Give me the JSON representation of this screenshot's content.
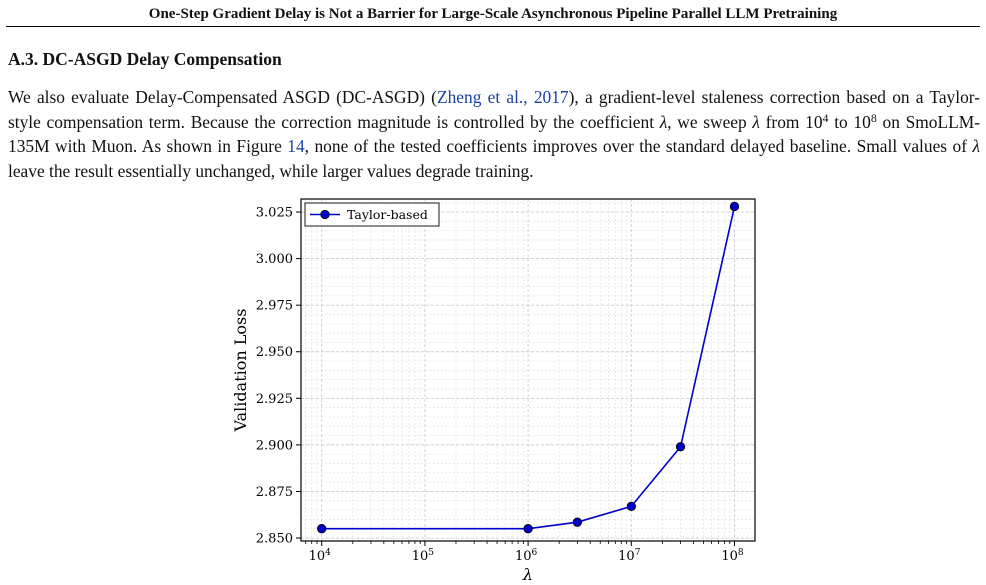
{
  "header": {
    "running_title": "One-Step Gradient Delay is Not a Barrier for Large-Scale Asynchronous Pipeline Parallel LLM Pretraining"
  },
  "section": {
    "title": "A.3. DC-ASGD Delay Compensation",
    "p_1": "We also evaluate Delay-Compensated ASGD (DC-ASGD) (",
    "citation": "Zheng et al., 2017",
    "p_2": "), a gradient-level staleness correction based on a Taylor-style compensation term. Because the correction magnitude is controlled by the coefficient ",
    "lambda_symbol": "λ",
    "p_3": ", we sweep ",
    "p_4": " from 10",
    "exp_from": "4",
    "p_5": " to 10",
    "exp_to": "8",
    "p_6": " on SmoLLM-135M with Muon. As shown in Figure ",
    "figure_ref": "14",
    "p_7": ", none of the tested coefficients improves over the standard delayed baseline. Small values of ",
    "p_8": " leave the result essentially unchanged, while larger values degrade training."
  },
  "chart_data": {
    "type": "line",
    "xlabel": "λ",
    "ylabel": "Validation Loss",
    "xscale": "log",
    "xlim": [
      6300,
      158000000
    ],
    "ylim": [
      2.8484,
      3.032
    ],
    "x_ticks": [
      10000,
      100000,
      1000000,
      10000000,
      100000000
    ],
    "x_tick_base": "10",
    "x_tick_exponents": [
      "4",
      "5",
      "6",
      "7",
      "8"
    ],
    "y_ticks": [
      2.85,
      2.875,
      2.9,
      2.925,
      2.95,
      2.975,
      3.0,
      3.025
    ],
    "y_tick_labels": [
      "2.850",
      "2.875",
      "2.900",
      "2.925",
      "2.950",
      "2.975",
      "3.000",
      "3.025"
    ],
    "grid": true,
    "legend_position": "top-left",
    "series": [
      {
        "name": "Taylor-based",
        "color": "#0000cc",
        "marker_color": "#0000cc",
        "x": [
          10000,
          1000000,
          3000000,
          10000000,
          30000000,
          100000000
        ],
        "y": [
          2.855,
          2.855,
          2.8585,
          2.867,
          2.899,
          3.028
        ]
      }
    ]
  }
}
